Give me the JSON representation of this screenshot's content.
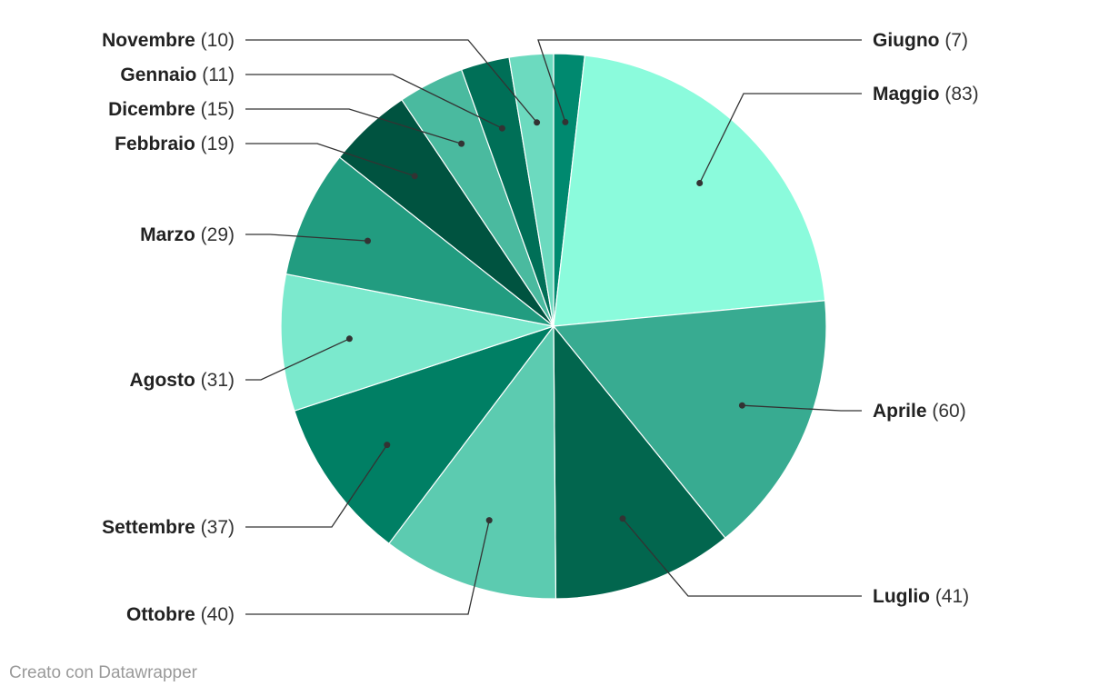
{
  "chart_data": {
    "type": "pie",
    "start_angle": "12 o'clock, clockwise",
    "slices": [
      {
        "label": "Giugno",
        "value": 7,
        "color": "#00896f"
      },
      {
        "label": "Maggio",
        "value": 83,
        "color": "#8bfbdc"
      },
      {
        "label": "Aprile",
        "value": 60,
        "color": "#38ab91"
      },
      {
        "label": "Luglio",
        "value": 41,
        "color": "#02664e"
      },
      {
        "label": "Ottobre",
        "value": 40,
        "color": "#5ccbb0"
      },
      {
        "label": "Settembre",
        "value": 37,
        "color": "#007f64"
      },
      {
        "label": "Agosto",
        "value": 31,
        "color": "#7be9cd"
      },
      {
        "label": "Marzo",
        "value": 29,
        "color": "#229c80"
      },
      {
        "label": "Febbraio",
        "value": 19,
        "color": "#005340"
      },
      {
        "label": "Dicembre",
        "value": 15,
        "color": "#4aba9f"
      },
      {
        "label": "Gennaio",
        "value": 11,
        "color": "#006f57"
      },
      {
        "label": "Novembre",
        "value": 10,
        "color": "#6cdabf"
      }
    ]
  },
  "footer": {
    "credit": "Creato con Datawrapper"
  }
}
